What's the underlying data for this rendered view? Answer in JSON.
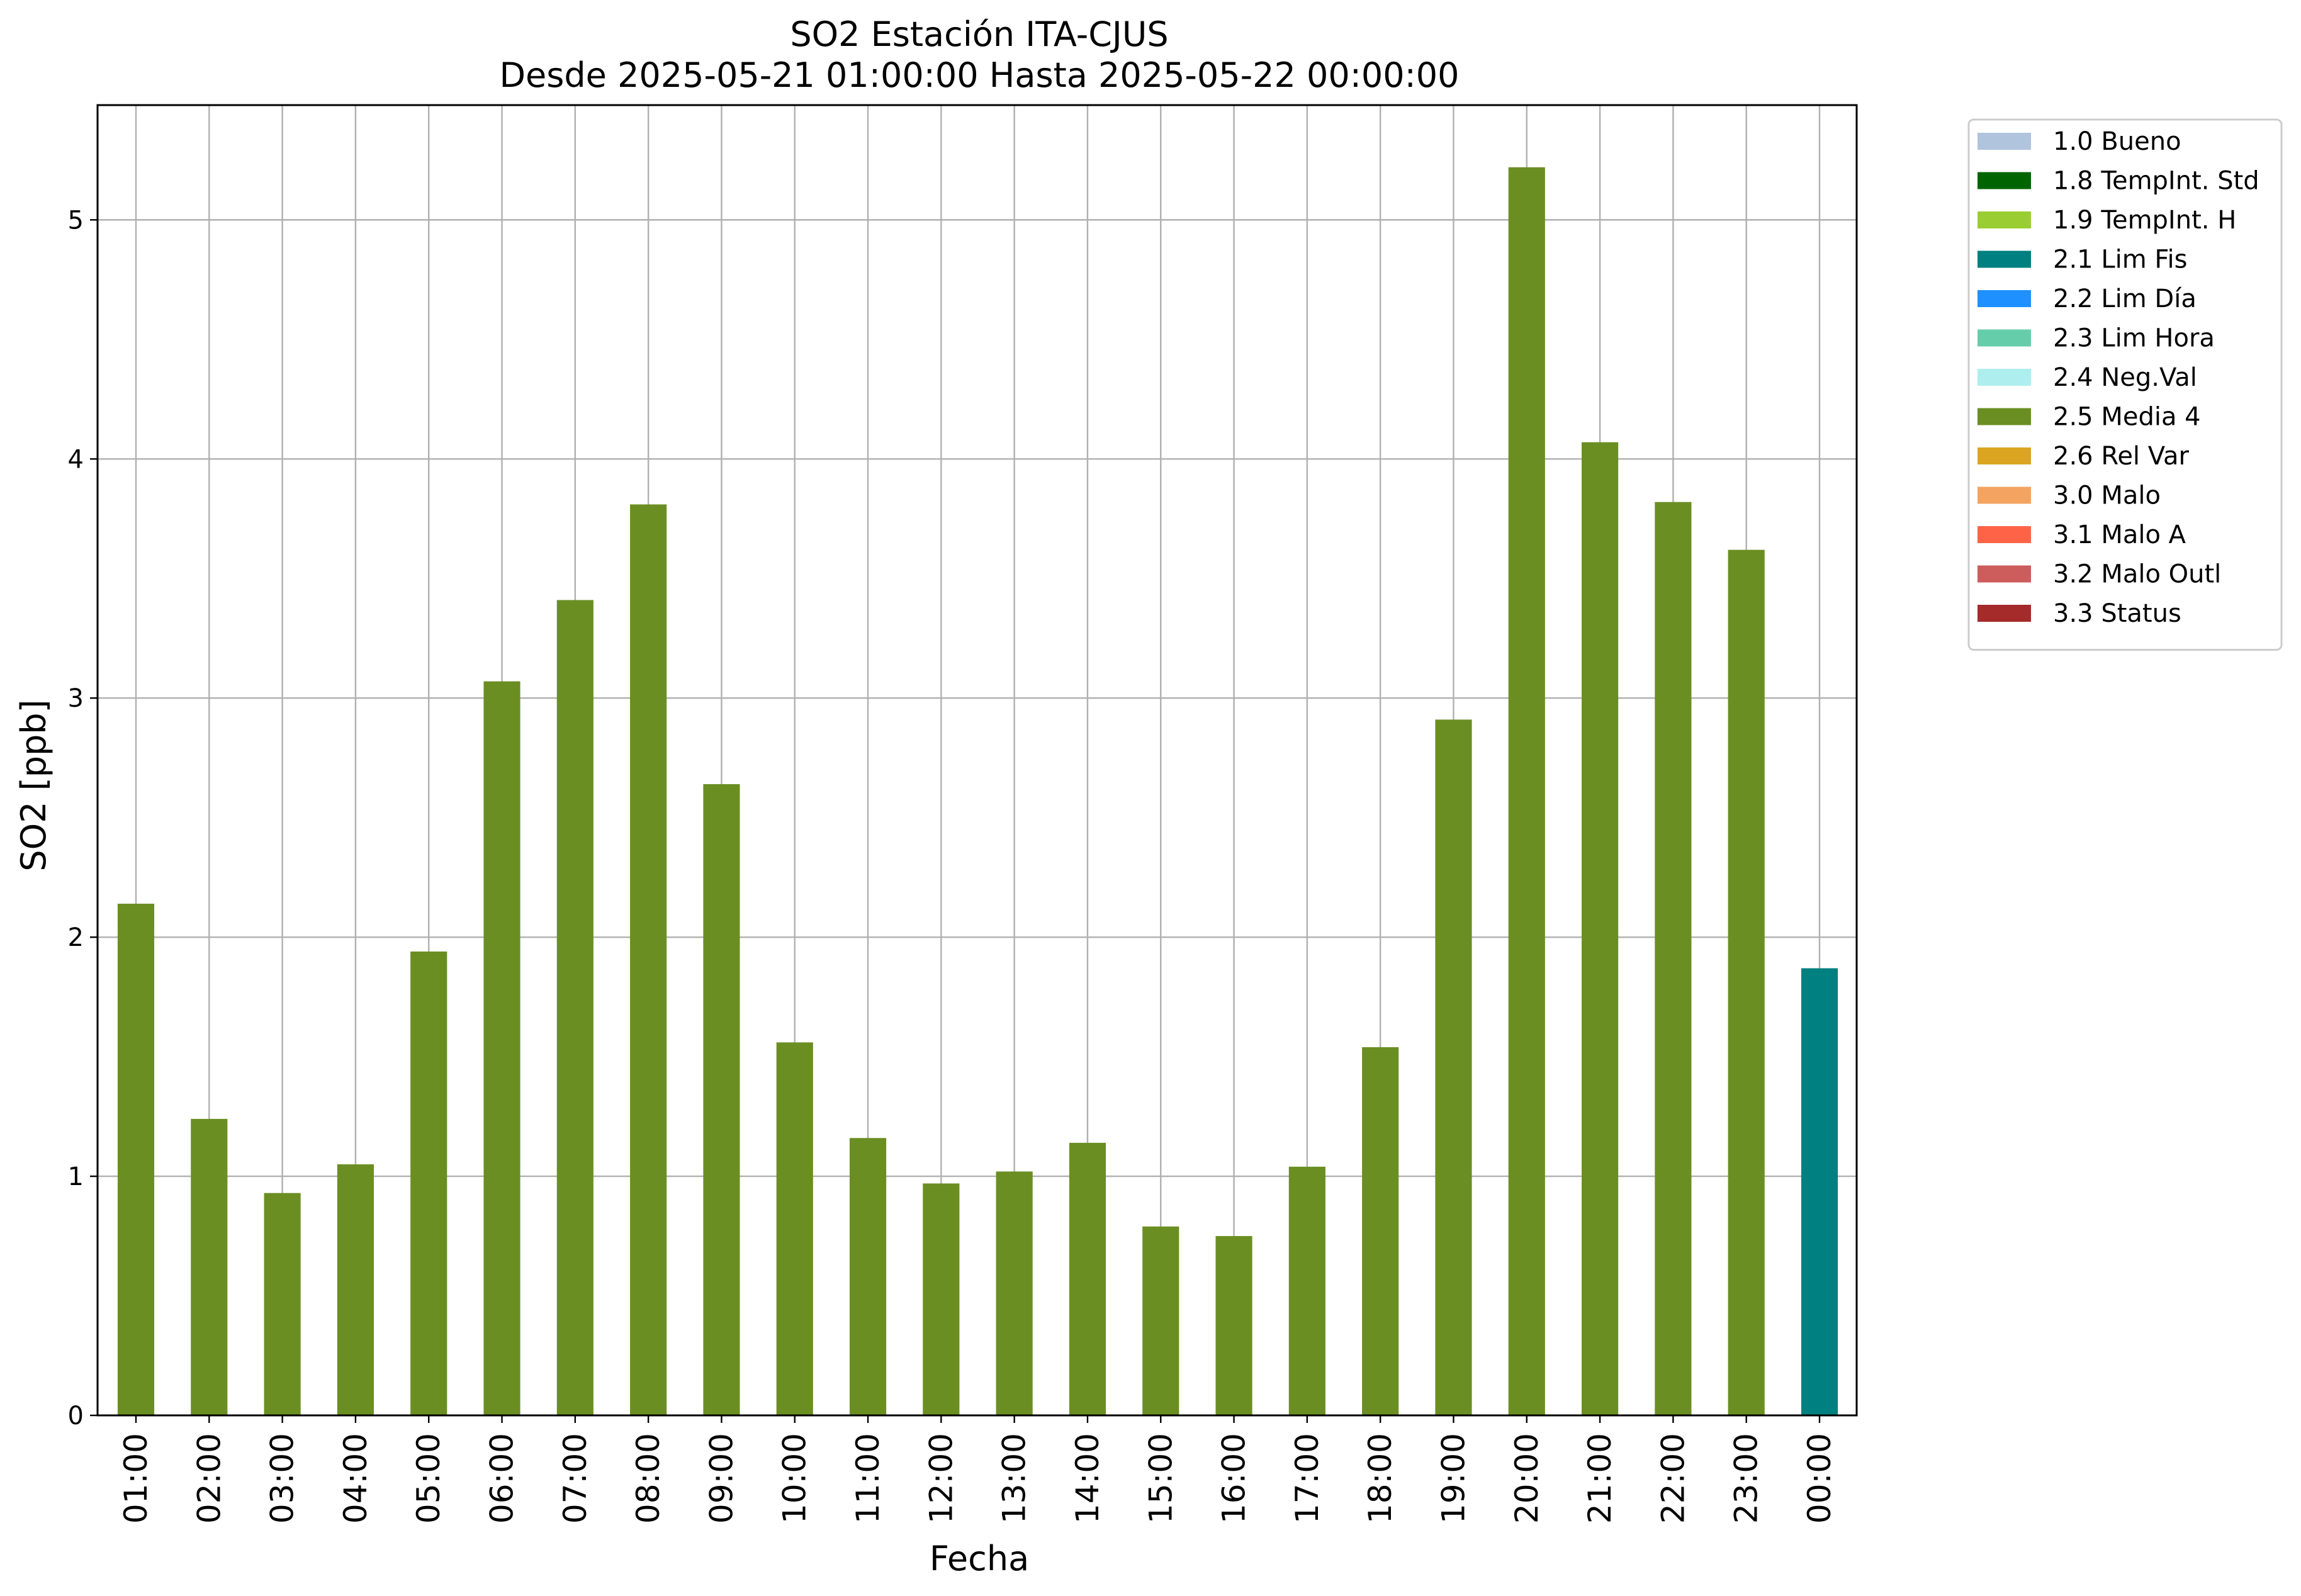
{
  "chart_data": {
    "type": "bar",
    "title": "SO2 Estación ITA-CJUS",
    "subtitle": "Desde 2025-05-21 01:00:00 Hasta 2025-05-22 00:00:00",
    "xlabel": "Fecha",
    "ylabel": "SO2 [ppb]",
    "ylim": [
      0,
      5.48
    ],
    "yticks": [
      0,
      1,
      2,
      3,
      4,
      5
    ],
    "grid": true,
    "legend_position": "outside-right-top",
    "categories": [
      "01:00",
      "02:00",
      "03:00",
      "04:00",
      "05:00",
      "06:00",
      "07:00",
      "08:00",
      "09:00",
      "10:00",
      "11:00",
      "12:00",
      "13:00",
      "14:00",
      "15:00",
      "16:00",
      "17:00",
      "18:00",
      "19:00",
      "20:00",
      "21:00",
      "22:00",
      "23:00",
      "00:00"
    ],
    "values": [
      2.14,
      1.24,
      0.93,
      1.05,
      1.94,
      3.07,
      3.41,
      3.81,
      2.64,
      1.56,
      1.16,
      0.97,
      1.02,
      1.14,
      0.79,
      0.75,
      1.04,
      1.54,
      2.91,
      5.22,
      4.07,
      3.82,
      3.62,
      1.87
    ],
    "flags": [
      "2.5 Media 4",
      "2.5 Media 4",
      "2.5 Media 4",
      "2.5 Media 4",
      "2.5 Media 4",
      "2.5 Media 4",
      "2.5 Media 4",
      "2.5 Media 4",
      "2.5 Media 4",
      "2.5 Media 4",
      "2.5 Media 4",
      "2.5 Media 4",
      "2.5 Media 4",
      "2.5 Media 4",
      "2.5 Media 4",
      "2.5 Media 4",
      "2.5 Media 4",
      "2.5 Media 4",
      "2.5 Media 4",
      "2.5 Media 4",
      "2.5 Media 4",
      "2.5 Media 4",
      "2.5 Media 4",
      "2.1 Lim Fis"
    ],
    "legend": [
      {
        "label": "1.0 Bueno",
        "color": "#b0c4de"
      },
      {
        "label": "1.8 TempInt. Std",
        "color": "#006400"
      },
      {
        "label": "1.9 TempInt. H",
        "color": "#9acd32"
      },
      {
        "label": "2.1 Lim Fis",
        "color": "#008080"
      },
      {
        "label": "2.2 Lim Día",
        "color": "#1e90ff"
      },
      {
        "label": "2.3 Lim Hora",
        "color": "#66cdaa"
      },
      {
        "label": "2.4 Neg.Val",
        "color": "#afeeee"
      },
      {
        "label": "2.5 Media 4",
        "color": "#6b8e23"
      },
      {
        "label": "2.6 Rel Var",
        "color": "#daa520"
      },
      {
        "label": "3.0 Malo",
        "color": "#f4a460"
      },
      {
        "label": "3.1 Malo A",
        "color": "#ff6347"
      },
      {
        "label": "3.2 Malo Outl",
        "color": "#cd5c5c"
      },
      {
        "label": "3.3 Status",
        "color": "#a52a2a"
      }
    ]
  }
}
